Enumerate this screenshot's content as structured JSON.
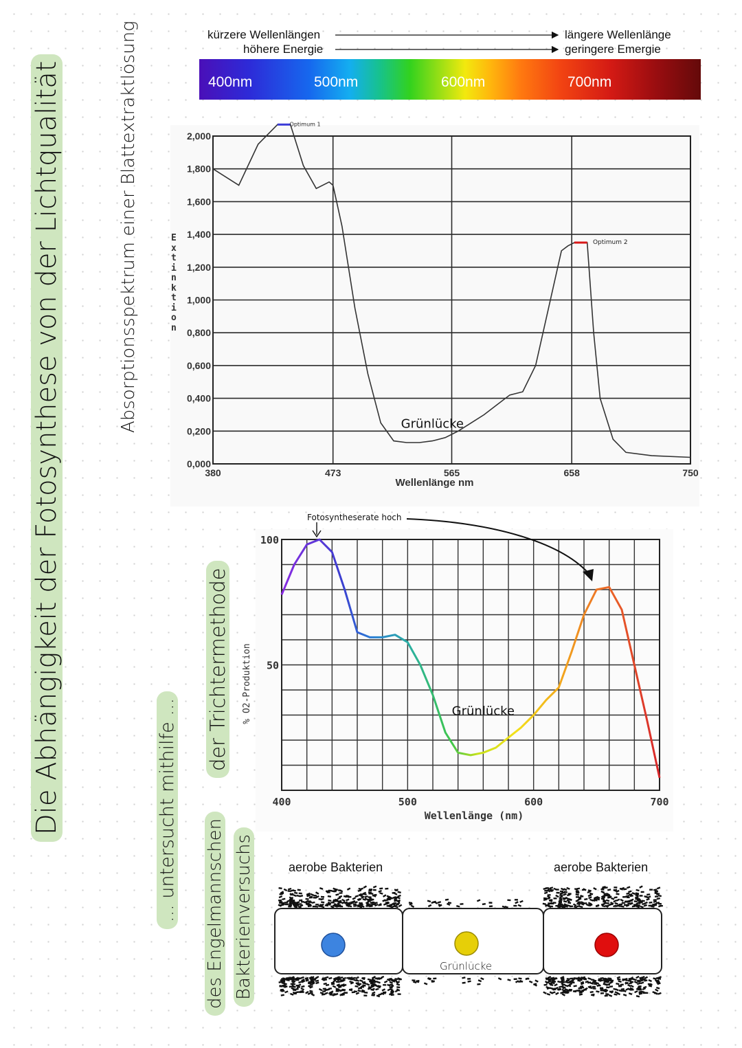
{
  "main_title": "Die Abhängigkeit der Fotosynthese von der Lichtqualität",
  "method_intro": "... untersucht mithilfe ...",
  "method1": "der Trichtermethode",
  "method2_line1": "des Engelmannschen",
  "method2_line2": "Bakterienversuchs",
  "energy": {
    "left_line1": "kürzere Wellenlängen",
    "left_line2": "höhere Energie",
    "right_line1": "längere Wellenlänge",
    "right_line2": "geringere Emergie"
  },
  "spectrum_labels": [
    "400nm",
    "500nm",
    "600nm",
    "700nm"
  ],
  "chart_data": [
    {
      "type": "line",
      "title": "Absorptionsspektrum einer Blattextraktlösung",
      "xlabel": "Wellenlänge nm",
      "ylabel": "Extinktion",
      "x_ticks": [
        "380",
        "473",
        "565",
        "658",
        "750"
      ],
      "y_ticks": [
        "0,000",
        "0,200",
        "0,400",
        "0,600",
        "0,800",
        "1,000",
        "1,200",
        "1,400",
        "1,600",
        "1,800",
        "2,000"
      ],
      "xlim": [
        380,
        750
      ],
      "ylim": [
        0,
        2
      ],
      "grid": true,
      "series": [
        {
          "x": [
            380,
            400,
            415,
            430,
            440,
            450,
            460,
            470,
            473,
            480,
            490,
            500,
            510,
            520,
            530,
            540,
            550,
            560,
            570,
            580,
            590,
            600,
            610,
            620,
            630,
            640,
            650,
            655,
            660,
            670,
            675,
            680,
            690,
            700,
            720,
            750
          ],
          "y": [
            1.8,
            1.7,
            1.95,
            2.07,
            2.07,
            1.82,
            1.68,
            1.72,
            1.7,
            1.45,
            0.95,
            0.55,
            0.25,
            0.14,
            0.13,
            0.13,
            0.14,
            0.16,
            0.2,
            0.25,
            0.3,
            0.36,
            0.42,
            0.44,
            0.6,
            0.95,
            1.3,
            1.33,
            1.35,
            1.35,
            0.8,
            0.4,
            0.15,
            0.07,
            0.05,
            0.04
          ]
        }
      ],
      "annotations": [
        {
          "text": "Optimum 1",
          "x": 433,
          "y": 2.07
        },
        {
          "text": "Optimum 2",
          "x": 668,
          "y": 1.35
        },
        {
          "text": "Grünlücke",
          "x": 550,
          "y": 0.22
        }
      ]
    },
    {
      "type": "line",
      "xlabel": "Wellenlänge (nm)",
      "ylabel": "% O2-Produktion",
      "x_ticks": [
        "400",
        "500",
        "600",
        "700"
      ],
      "y_ticks": [
        "50",
        "100"
      ],
      "xlim": [
        400,
        700
      ],
      "ylim": [
        0,
        100
      ],
      "grid": true,
      "series": [
        {
          "x": [
            400,
            410,
            420,
            430,
            440,
            450,
            460,
            470,
            480,
            490,
            500,
            510,
            520,
            530,
            540,
            550,
            560,
            570,
            580,
            590,
            600,
            610,
            620,
            630,
            640,
            650,
            660,
            670,
            680,
            690,
            700
          ],
          "y": [
            78,
            90,
            98,
            100,
            95,
            80,
            63,
            61,
            61,
            62,
            59,
            50,
            38,
            23,
            15,
            14,
            15,
            17,
            21,
            25,
            30,
            36,
            41,
            55,
            70,
            80,
            81,
            72,
            50,
            28,
            5
          ]
        }
      ],
      "annotations": [
        {
          "text": "Fotosyntheserate hoch"
        },
        {
          "text": "Grünlücke",
          "x": 560,
          "y": 30
        }
      ]
    }
  ],
  "bacteria": {
    "left_label": "aerobe Bakterien",
    "right_label": "aerobe Bakterien",
    "gap_label": "Grünlücke",
    "colors": {
      "blue": "#3d84e0",
      "yellow": "#e6cf08",
      "red": "#e00e0e"
    }
  }
}
